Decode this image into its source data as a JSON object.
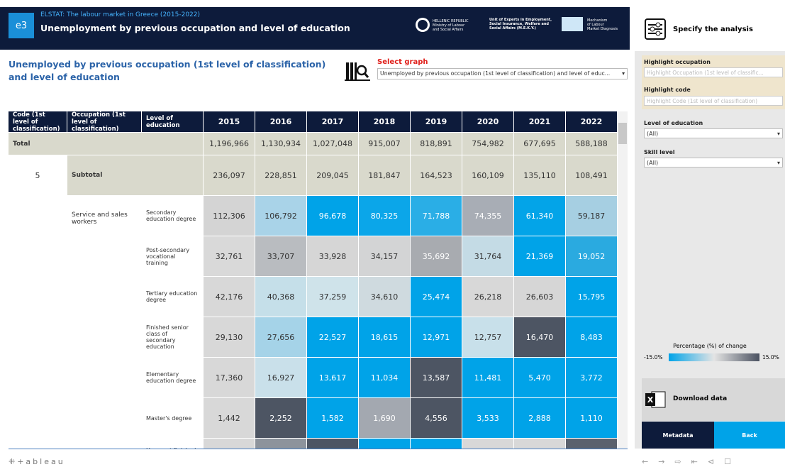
{
  "header": {
    "badge": "e3",
    "source": "ELSTAT: The labour market in Greece (2015-2022)",
    "title": "Unemployment by previous occupation and level of education",
    "logos": [
      {
        "line1": "HELLENIC REPUBLIC",
        "line2": "Ministry of Labour",
        "line3": "and Social Affairs"
      },
      {
        "line1": "Unit of Experts in Employment,",
        "line2": "Social Insurance, Welfare and",
        "line3": "Social Affairs (M.E.K.Y.)"
      },
      {
        "line1": "Mechanism",
        "line2": "of Labour",
        "line3": "Market Diagnosis"
      }
    ]
  },
  "heading": "Unemployed by previous occupation (1st level of classification) and level of education",
  "select_graph": {
    "label": "Select graph",
    "value": "Unemployed by previous occupation (1st level of classification) and level of educ..."
  },
  "table": {
    "columns": [
      "Code (1st level of classification)",
      "Occupation (1st level of classification)",
      "Level of education",
      "2015",
      "2016",
      "2017",
      "2018",
      "2019",
      "2020",
      "2021",
      "2022"
    ],
    "total": {
      "label": "Total",
      "values": [
        "1,196,966",
        "1,130,934",
        "1,027,048",
        "915,007",
        "818,891",
        "754,982",
        "677,695",
        "588,188"
      ]
    },
    "subtotal": {
      "code": "5",
      "label": "Subtotal",
      "values": [
        "236,097",
        "228,851",
        "209,045",
        "181,847",
        "164,523",
        "160,109",
        "135,110",
        "108,491"
      ]
    },
    "group": "Service and sales workers",
    "rows": [
      {
        "level": "Secondary education degree",
        "values": [
          "112,306",
          "106,792",
          "96,678",
          "80,325",
          "71,788",
          "74,355",
          "61,340",
          "59,187"
        ],
        "colors": [
          "#d4d4d4",
          "#a9d3e8",
          "#00a3e8",
          "#0ba6e9",
          "#2aaee6",
          "#a8adb5",
          "#03a4e8",
          "#a6cfe2"
        ]
      },
      {
        "level": "Post-secondary vocational training",
        "values": [
          "32,761",
          "33,707",
          "33,928",
          "34,157",
          "35,692",
          "31,764",
          "21,369",
          "19,052"
        ],
        "colors": [
          "#d9d9d9",
          "#b9bcc0",
          "#d6d6d6",
          "#d3d4d5",
          "#a8abb0",
          "#c4dbe5",
          "#00a3e8",
          "#2aaae0"
        ]
      },
      {
        "level": "Tertiary education degree",
        "values": [
          "42,176",
          "40,368",
          "37,259",
          "34,610",
          "25,474",
          "26,218",
          "26,603",
          "15,795"
        ],
        "colors": [
          "#d8d8d8",
          "#c5dfe9",
          "#cfe3ea",
          "#cfdadf",
          "#00a3e8",
          "#d8d8d8",
          "#d6d6d6",
          "#00a3e8"
        ]
      },
      {
        "level": "Finished senior class of secondary education",
        "values": [
          "29,130",
          "27,656",
          "22,527",
          "18,615",
          "12,971",
          "12,757",
          "16,470",
          "8,483"
        ],
        "colors": [
          "#d8d8d8",
          "#a5d3e8",
          "#00a3e8",
          "#00a3e8",
          "#00a3e8",
          "#c8e0ea",
          "#4d5563",
          "#00a3e8"
        ]
      },
      {
        "level": "Elementary education degree",
        "values": [
          "17,360",
          "16,927",
          "13,617",
          "11,034",
          "13,587",
          "11,481",
          "5,470",
          "3,772"
        ],
        "colors": [
          "#d8d8d8",
          "#c9e0ea",
          "#00a3e8",
          "#00a3e8",
          "#4d5563",
          "#00a3e8",
          "#00a3e8",
          "#00a3e8"
        ]
      },
      {
        "level": "Master's degree",
        "values": [
          "1,442",
          "2,252",
          "1,582",
          "1,690",
          "4,556",
          "3,533",
          "2,888",
          "1,110"
        ],
        "colors": [
          "#d8d8d8",
          "#4d5563",
          "#00a3e8",
          "#a3a8b0",
          "#4d5563",
          "#00a3e8",
          "#00a3e8",
          "#00a3e8"
        ]
      },
      {
        "level": "Have not finished",
        "values": [],
        "colors": [
          "#d8d8d8",
          "#8d939c",
          "#4d5563",
          "#00a3e8",
          "#00a3e8",
          "#d8d8d8",
          "#d8d8d8",
          "#5a616d"
        ]
      }
    ]
  },
  "sidebar": {
    "title": "Specify the analysis",
    "highlight_occupation": {
      "label": "Highlight occupation",
      "placeholder": "Highlight Occupation (1st level of classific..."
    },
    "highlight_code": {
      "label": "Highlight code",
      "placeholder": "Highlight Code (1st level of classification)"
    },
    "level_filter": {
      "label": "Level of education",
      "value": "(All)"
    },
    "skill_filter": {
      "label": "Skill level",
      "value": "(All)"
    },
    "legend": {
      "title": "Percentage (%) of change",
      "min": "-15.0%",
      "max": "15.0%"
    },
    "download": "Download data",
    "metadata": "Metadata",
    "back": "Back"
  },
  "footer": {
    "brand": "+ableau"
  }
}
